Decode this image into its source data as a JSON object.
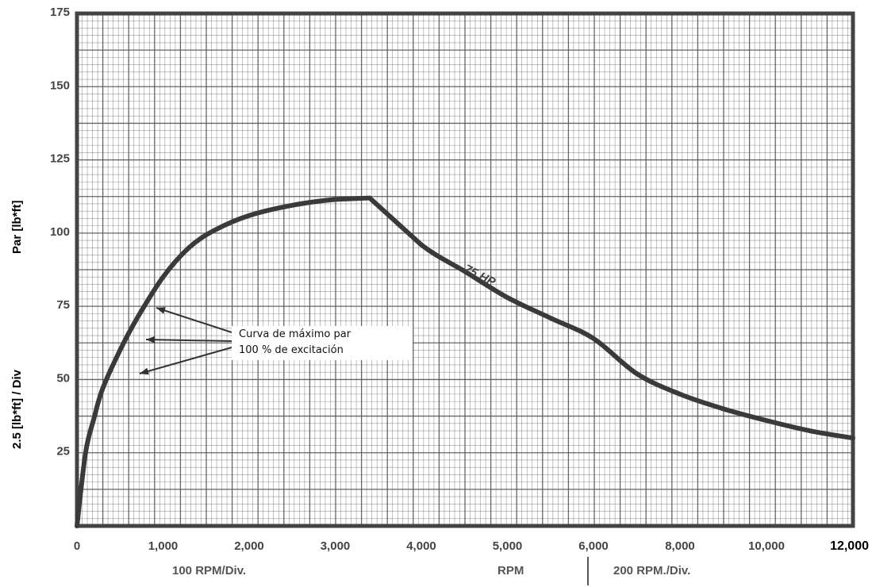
{
  "y_axis_label_top": "Par [lb*ft]",
  "y_axis_label_bottom": "2.5 [lb*ft] / Div",
  "annotation": {
    "line1": "Curva de máximo par",
    "line2": "100 % de excitación"
  },
  "bottom_labels": {
    "left_scale": "100 RPM/Div.",
    "center": "RPM",
    "right_scale": "200 RPM./Div."
  },
  "colors": {
    "grid": "#555555",
    "curve": "#3a3a3a",
    "frame": "#444444"
  },
  "chart_data": {
    "type": "line",
    "xlabel": "RPM",
    "ylabel": "Par [lb*ft]",
    "y_ticks": [
      "25",
      "50",
      "75",
      "100",
      "125",
      "150",
      "175"
    ],
    "x_ticks": [
      "0",
      "1,000",
      "2,000",
      "3,000",
      "4,000",
      "5,000",
      "6,000",
      "8,000",
      "10,000",
      "12,000"
    ],
    "x_scale_note": "piecewise: 100 RPM/Div. from 0 to 6,000; 200 RPM./Div. from 6,000 to 12,000",
    "ylim": [
      0,
      175
    ],
    "grid": true,
    "annotations": [
      "75 HP"
    ],
    "series": [
      {
        "x": [
          0,
          100,
          200,
          300,
          500,
          700,
          1000,
          1300,
          1600,
          2000,
          2500,
          3000,
          3400,
          4000,
          4500,
          5000,
          5500,
          6000,
          7000,
          8000,
          9000,
          10000,
          11000,
          12000
        ],
        "y": [
          0,
          25,
          37,
          47,
          60,
          71,
          85,
          95,
          101,
          106,
          109.5,
          111.5,
          112,
          96,
          87,
          78,
          71,
          64,
          52,
          45,
          40,
          36,
          32.5,
          30
        ]
      }
    ]
  }
}
